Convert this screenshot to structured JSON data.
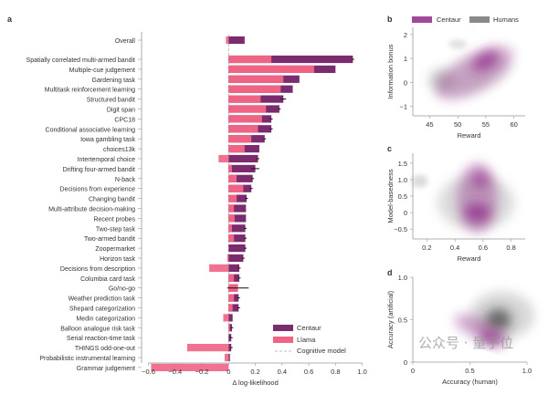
{
  "colors": {
    "centaur": "#7a2c6e",
    "llama": "#ef6384",
    "cognitive": "#aaaaaa",
    "humans": "#8a8a8a",
    "centaur_density": "#8e2a86"
  },
  "watermark": "公众号 · 量子位",
  "chart_data": [
    {
      "panel": "a",
      "type": "bar",
      "orientation": "horizontal",
      "xlabel": "Δ log-likelihood",
      "xlim": [
        -0.65,
        1.02
      ],
      "xticks": [
        "−0.6",
        "−0.4",
        "−0.2",
        "0",
        "0.2",
        "0.4",
        "0.6",
        "0.8",
        "1.0"
      ],
      "xtick_values": [
        -0.6,
        -0.4,
        -0.2,
        0,
        0.2,
        0.4,
        0.6,
        0.8,
        1.0
      ],
      "legend": {
        "placement": "bottom-right",
        "entries": [
          "Centaur",
          "Llama",
          "Cognitive model"
        ]
      },
      "reference_line": {
        "name": "Cognitive model",
        "x": 0
      },
      "categories": [
        "Overall",
        "Spatially correlated multi-armed bandit",
        "Multiple-cue judgement",
        "Gardening task",
        "Multitask reinforcement learning",
        "Structured bandit",
        "Digit span",
        "CPC18",
        "Conditional associative learning",
        "Iowa gambling task",
        "choices13k",
        "Intertemporal choice",
        "Drifting four-armed bandit",
        "N-back",
        "Decisions from experience",
        "Changing bandit",
        "Multi-attribute decision-making",
        "Recent probes",
        "Two-step task",
        "Two-armed bandit",
        "Zoopermarket",
        "Horizon task",
        "Decisions from description",
        "Columbia card task",
        "Go/no-go",
        "Weather prediction task",
        "Shepard categorization",
        "Medin categorization",
        "Balloon analogue risk task",
        "Serial reaction-time task",
        "THINGS odd-one-out",
        "Probabilistic instrumental learning",
        "Grammar judgement"
      ],
      "series": [
        {
          "name": "Centaur",
          "values": [
            0.12,
            0.93,
            0.8,
            0.53,
            0.48,
            0.41,
            0.38,
            0.32,
            0.32,
            0.27,
            0.23,
            0.22,
            0.2,
            0.18,
            0.17,
            0.135,
            0.13,
            0.13,
            0.125,
            0.125,
            0.125,
            0.11,
            0.08,
            0.08,
            0.07,
            0.075,
            0.075,
            0.03,
            0.025,
            0.02,
            0.02,
            0.01,
            0.0
          ],
          "errors": [
            0,
            0.01,
            0,
            0,
            0,
            0.02,
            0.01,
            0.01,
            0.01,
            0.01,
            0,
            0.01,
            0.03,
            0.01,
            0.01,
            0.01,
            0,
            0,
            0.01,
            0.01,
            0.01,
            0.01,
            0.01,
            0.01,
            0.08,
            0.01,
            0.01,
            0,
            0.01,
            0.01,
            0.01,
            0,
            0
          ]
        },
        {
          "name": "Llama",
          "values": [
            -0.02,
            0.32,
            0.64,
            0.41,
            0.39,
            0.24,
            0.28,
            0.25,
            0.22,
            0.17,
            0.12,
            -0.075,
            0.025,
            0.06,
            0.11,
            0.06,
            0.04,
            0.045,
            0.025,
            0.04,
            0.0,
            -0.01,
            -0.145,
            0.04,
            0.07,
            0.04,
            0.03,
            -0.04,
            0.01,
            0.0,
            -0.31,
            -0.03,
            -0.58
          ]
        }
      ]
    },
    {
      "panel": "b",
      "type": "density",
      "xlabel": "Reward",
      "ylabel": "Information bonus",
      "xlim": [
        42,
        62
      ],
      "ylim": [
        -1.4,
        2.3
      ],
      "xticks": [
        "45",
        "50",
        "55",
        "60"
      ],
      "yticks": [
        "2",
        "1",
        "0",
        "−1"
      ],
      "legend": {
        "placement": "top",
        "entries": [
          "Centaur",
          "Humans"
        ]
      },
      "peaks": {
        "Centaur": [
          55,
          0.9
        ],
        "Humans": [
          47,
          0.1
        ]
      }
    },
    {
      "panel": "c",
      "type": "density",
      "xlabel": "Reward",
      "ylabel": "Model-basedness",
      "xlim": [
        0.1,
        0.9
      ],
      "ylim": [
        -0.8,
        1.8
      ],
      "xticks": [
        "0.2",
        "0.4",
        "0.6",
        "0.8"
      ],
      "yticks": [
        "1.5",
        "1.0",
        "0.5",
        "0",
        "−0.5"
      ],
      "peaks": {
        "Centaur": [
          [
            0.56,
            0.0
          ],
          [
            0.58,
            1.0
          ]
        ],
        "Humans": [
          0.5,
          0.3
        ]
      }
    },
    {
      "panel": "d",
      "type": "density",
      "xlabel": "Accuracy (human)",
      "ylabel": "Accuracy (artificial)",
      "xlim": [
        0,
        1.0
      ],
      "ylim": [
        0,
        1.0
      ],
      "xticks": [
        "0",
        "0.5",
        "1.0"
      ],
      "yticks": [
        "1.0",
        "0.5",
        "0"
      ],
      "peaks": {
        "Centaur": [
          0.7,
          0.28
        ],
        "Humans": [
          0.78,
          0.5
        ]
      }
    }
  ],
  "panel_labels": [
    "a",
    "b",
    "c",
    "d"
  ]
}
